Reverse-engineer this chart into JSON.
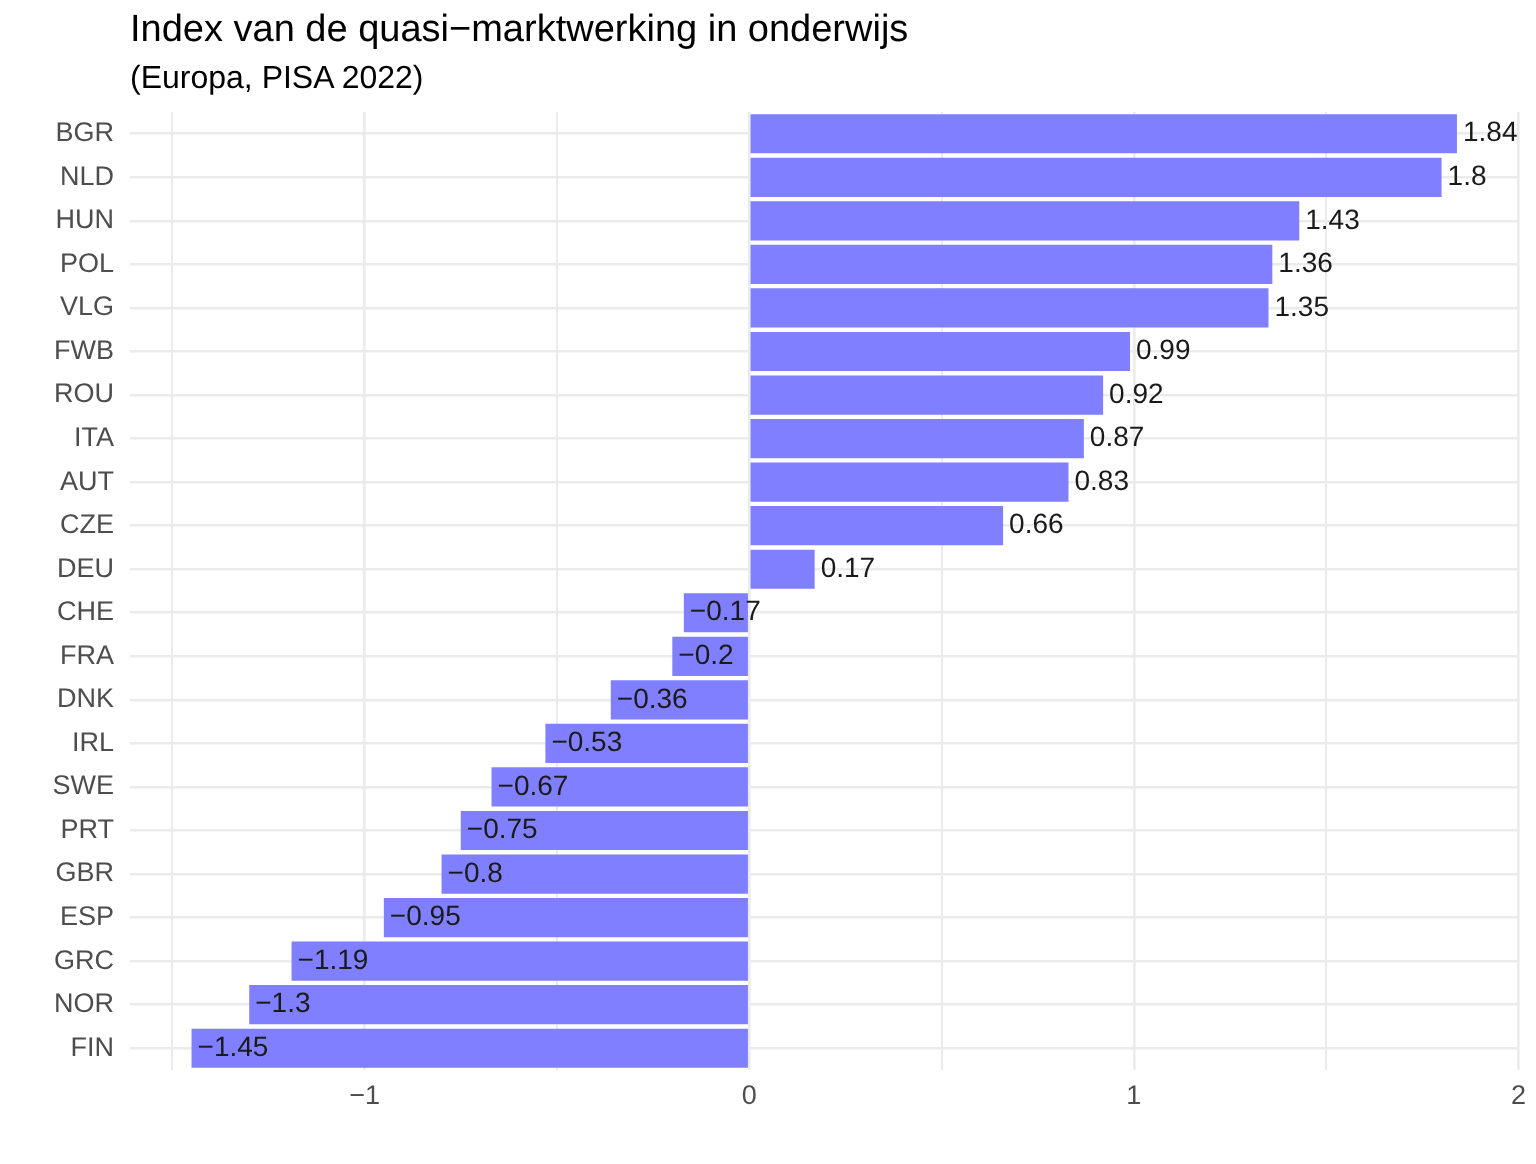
{
  "chart_data": {
    "type": "bar",
    "orientation": "horizontal",
    "title": "Index van de quasi−marktwerking in onderwijs",
    "subtitle": "(Europa, PISA 2022)",
    "categories": [
      "BGR",
      "NLD",
      "HUN",
      "POL",
      "VLG",
      "FWB",
      "ROU",
      "ITA",
      "AUT",
      "CZE",
      "DEU",
      "CHE",
      "FRA",
      "DNK",
      "IRL",
      "SWE",
      "PRT",
      "GBR",
      "ESP",
      "GRC",
      "NOR",
      "FIN"
    ],
    "values": [
      1.84,
      1.8,
      1.43,
      1.36,
      1.35,
      0.99,
      0.92,
      0.87,
      0.83,
      0.66,
      0.17,
      -0.17,
      -0.2,
      -0.36,
      -0.53,
      -0.67,
      -0.75,
      -0.8,
      -0.95,
      -1.19,
      -1.3,
      -1.45
    ],
    "value_labels": [
      "1.84",
      "1.8",
      "1.43",
      "1.36",
      "1.35",
      "0.99",
      "0.92",
      "0.87",
      "0.83",
      "0.66",
      "0.17",
      "−0.17",
      "−0.2",
      "−0.36",
      "−0.53",
      "−0.67",
      "−0.75",
      "−0.8",
      "−0.95",
      "−1.19",
      "−1.3",
      "−1.45"
    ],
    "color": "#7f7fff",
    "xlim": [
      -1.61,
      2
    ],
    "xticks": [
      {
        "value": -1.5,
        "label": null
      },
      {
        "value": -1,
        "label": "−1"
      },
      {
        "value": -0.5,
        "label": null
      },
      0,
      {
        "value": 0.5,
        "label": null
      },
      1,
      {
        "value": 1.5,
        "label": null
      },
      2
    ],
    "grid": true
  }
}
